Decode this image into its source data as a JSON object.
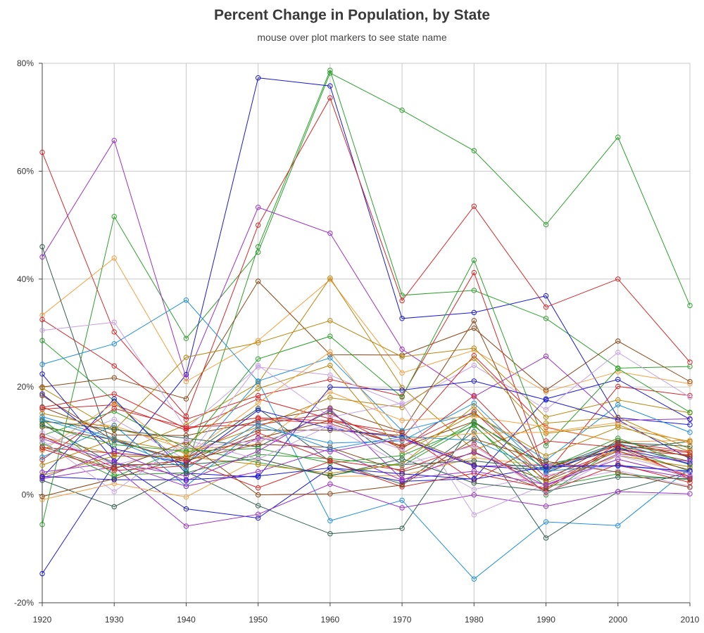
{
  "chart_data": {
    "type": "line",
    "title": "Percent Change in Population, by State",
    "subtitle": "mouse over plot markers to see state name",
    "xlabel": "",
    "ylabel": "",
    "x": [
      1920,
      1930,
      1940,
      1950,
      1960,
      1970,
      1980,
      1990,
      2000,
      2010
    ],
    "x_tick_labels": [
      "1920",
      "1930",
      "1940",
      "1950",
      "1960",
      "1970",
      "1980",
      "1990",
      "2000",
      "2010"
    ],
    "ylim": [
      -20,
      80
    ],
    "y_ticks": [
      -20,
      0,
      20,
      40,
      60,
      80
    ],
    "y_tick_labels": [
      "-20%",
      "0%",
      "20%",
      "40%",
      "60%",
      "80%"
    ],
    "grid": true,
    "legend": "none",
    "series": [
      {
        "color": "#2ca02c",
        "values": [
          -5.5,
          51.6,
          29.0,
          45.0,
          78.2,
          71.3,
          63.8,
          50.1,
          66.3,
          35.1
        ]
      },
      {
        "color": "#2ca02c",
        "values": [
          28.6,
          17.4,
          4.8,
          46.0,
          78.7,
          37.0,
          37.9,
          32.7,
          23.5,
          23.8
        ]
      },
      {
        "color": "#1a1ad2",
        "values": [
          -14.6,
          5.7,
          22.3,
          77.3,
          75.8,
          32.7,
          33.8,
          36.9,
          14.3,
          13.0
        ]
      },
      {
        "color": "#d62728",
        "values": [
          63.5,
          30.2,
          14.6,
          50.0,
          73.6,
          36.0,
          53.5,
          34.8,
          40.0,
          24.6
        ]
      },
      {
        "color": "#9b30c8",
        "values": [
          44.1,
          65.7,
          21.7,
          53.3,
          48.5,
          27.0,
          18.2,
          25.7,
          13.8,
          14.1
        ]
      },
      {
        "color": "#f5a042",
        "values": [
          33.3,
          43.9,
          21.0,
          28.6,
          39.9,
          22.6,
          26.8,
          19.1,
          22.8,
          20.6
        ]
      },
      {
        "color": "#1f8fdc",
        "values": [
          24.2,
          28.0,
          36.1,
          21.0,
          -4.8,
          -1.0,
          -15.6,
          -5.0,
          -5.7,
          5.0
        ]
      },
      {
        "color": "#8b4513",
        "values": [
          20.0,
          21.7,
          17.8,
          39.6,
          26.0,
          25.9,
          30.9,
          19.4,
          28.5,
          21.0
        ]
      },
      {
        "color": "#d62728",
        "values": [
          32.5,
          23.9,
          14.0,
          18.4,
          21.4,
          18.3,
          41.2,
          3.9,
          20.1,
          18.4
        ]
      },
      {
        "color": "#b8860b",
        "values": [
          19.8,
          12.0,
          25.5,
          28.2,
          32.3,
          25.6,
          27.2,
          14.4,
          17.6,
          15.2
        ]
      },
      {
        "color": "#2f5f4f",
        "values": [
          46.0,
          7.2,
          7.0,
          16.0,
          6.2,
          2.0,
          11.7,
          -8.0,
          0.6,
          4.3
        ]
      },
      {
        "color": "#b8860b",
        "values": [
          10.7,
          7.5,
          13.0,
          20.7,
          40.2,
          19.9,
          8.3,
          13.3,
          14.4,
          8.5
        ]
      },
      {
        "color": "#1a1ad2",
        "values": [
          22.4,
          6.3,
          -2.6,
          -4.3,
          5.0,
          2.5,
          3.0,
          17.8,
          21.4,
          14.0
        ]
      },
      {
        "color": "#8b4513",
        "values": [
          16.3,
          11.1,
          11.0,
          13.6,
          16.1,
          11.7,
          32.3,
          4.0,
          9.4,
          7.2
        ]
      },
      {
        "color": "#c8a2e8",
        "values": [
          30.5,
          32.0,
          12.3,
          23.7,
          22.2,
          16.7,
          24.0,
          15.8,
          26.4,
          18.1
        ]
      },
      {
        "color": "#2ca02c",
        "values": [
          11.0,
          15.5,
          8.6,
          25.2,
          29.4,
          18.1,
          43.5,
          9.1,
          23.4,
          15.3
        ]
      },
      {
        "color": "#d62728",
        "values": [
          15.9,
          16.7,
          12.0,
          17.8,
          14.1,
          10.5,
          25.8,
          12.5,
          9.8,
          8.0
        ]
      },
      {
        "color": "#1f8fdc",
        "values": [
          14.5,
          10.5,
          5.5,
          21.1,
          25.4,
          11.9,
          15.1,
          6.4,
          16.7,
          11.6
        ]
      },
      {
        "color": "#f5a042",
        "values": [
          13.5,
          12.8,
          8.4,
          9.4,
          19.1,
          13.8,
          14.5,
          12.6,
          9.8,
          10.1
        ]
      },
      {
        "color": "#1a1ad2",
        "values": [
          3.2,
          17.8,
          4.0,
          3.3,
          20.0,
          19.4,
          21.1,
          17.6,
          13.9,
          6.7
        ]
      },
      {
        "color": "#8b4513",
        "values": [
          12.6,
          10.2,
          6.1,
          12.0,
          12.0,
          11.0,
          5.6,
          0.9,
          9.1,
          6.2
        ]
      },
      {
        "color": "#2ca02c",
        "values": [
          14.0,
          3.7,
          4.1,
          7.5,
          6.7,
          5.4,
          13.0,
          0.0,
          8.9,
          4.4
        ]
      },
      {
        "color": "#d62728",
        "values": [
          8.8,
          7.7,
          6.8,
          14.1,
          13.2,
          9.1,
          15.4,
          3.2,
          8.3,
          7.4
        ]
      },
      {
        "color": "#9b30c8",
        "values": [
          3.0,
          5.2,
          -5.8,
          -3.6,
          2.0,
          -2.4,
          0.0,
          -2.1,
          0.6,
          0.2
        ]
      },
      {
        "color": "#b8860b",
        "values": [
          5.5,
          10.3,
          7.8,
          12.6,
          18.0,
          16.2,
          25.3,
          11.4,
          13.0,
          8.0
        ]
      },
      {
        "color": "#2f5f4f",
        "values": [
          2.7,
          -2.2,
          4.3,
          -2.0,
          -7.2,
          -6.2,
          13.4,
          5.6,
          8.4,
          9.9
        ]
      },
      {
        "color": "#d62728",
        "values": [
          6.5,
          16.0,
          12.6,
          13.0,
          15.1,
          8.5,
          18.4,
          4.8,
          9.2,
          7.8
        ]
      },
      {
        "color": "#c8a2e8",
        "values": [
          9.0,
          14.0,
          6.5,
          24.0,
          14.4,
          17.0,
          -3.7,
          2.0,
          4.5,
          1.6
        ]
      },
      {
        "color": "#f5a042",
        "values": [
          -0.9,
          2.1,
          -0.4,
          6.7,
          3.4,
          3.6,
          6.9,
          5.4,
          8.1,
          3.5
        ]
      },
      {
        "color": "#8b4513",
        "values": [
          -0.3,
          3.0,
          7.0,
          10.5,
          13.8,
          8.9,
          13.6,
          2.6,
          10.1,
          7.0
        ]
      },
      {
        "color": "#1f8fdc",
        "values": [
          7.0,
          12.9,
          1.6,
          12.6,
          9.6,
          10.0,
          17.0,
          4.2,
          9.6,
          5.6
        ]
      },
      {
        "color": "#9b30c8",
        "values": [
          4.2,
          6.0,
          3.5,
          10.6,
          8.0,
          10.4,
          5.3,
          5.5,
          5.4,
          3.1
        ]
      },
      {
        "color": "#2ca02c",
        "values": [
          9.6,
          3.3,
          8.8,
          6.0,
          3.6,
          5.9,
          13.6,
          4.8,
          10.5,
          5.6
        ]
      },
      {
        "color": "#d62728",
        "values": [
          16.2,
          18.7,
          12.3,
          14.3,
          13.7,
          11.5,
          2.6,
          10.0,
          8.8,
          3.3
        ]
      },
      {
        "color": "#1a1ad2",
        "values": [
          18.7,
          8.5,
          5.8,
          15.7,
          12.3,
          10.6,
          5.4,
          4.6,
          8.6,
          5.8
        ]
      },
      {
        "color": "#b8860b",
        "values": [
          15.1,
          12.3,
          9.3,
          19.7,
          24.0,
          7.7,
          15.0,
          7.2,
          12.5,
          9.9
        ]
      },
      {
        "color": "#2f5f4f",
        "values": [
          13.7,
          12.1,
          10.5,
          8.9,
          15.5,
          5.6,
          6.3,
          4.8,
          9.7,
          9.0
        ]
      },
      {
        "color": "#8b4513",
        "values": [
          18.4,
          10.0,
          6.4,
          9.4,
          8.8,
          4.3,
          7.8,
          2.6,
          8.1,
          4.6
        ]
      },
      {
        "color": "#c8a2e8",
        "values": [
          11.5,
          5.5,
          8.8,
          10.0,
          12.9,
          8.4,
          1.0,
          3.7,
          5.4,
          4.2
        ]
      },
      {
        "color": "#f5a042",
        "values": [
          8.2,
          17.0,
          7.3,
          17.0,
          26.5,
          10.2,
          11.4,
          11.6,
          13.4,
          9.6
        ]
      },
      {
        "color": "#9b30c8",
        "values": [
          10.4,
          6.1,
          1.6,
          4.3,
          8.5,
          2.7,
          8.0,
          1.7,
          7.6,
          6.2
        ]
      },
      {
        "color": "#2ca02c",
        "values": [
          12.9,
          9.3,
          8.1,
          8.6,
          5.9,
          7.3,
          12.8,
          1.5,
          3.9,
          2.8
        ]
      },
      {
        "color": "#1f8fdc",
        "values": [
          14.0,
          10.1,
          4.8,
          13.3,
          8.5,
          10.8,
          10.1,
          4.4,
          5.5,
          4.3
        ]
      },
      {
        "color": "#d62728",
        "values": [
          8.5,
          4.5,
          5.4,
          11.5,
          6.4,
          4.6,
          9.4,
          0.5,
          5.7,
          2.3
        ]
      },
      {
        "color": "#b8860b",
        "values": [
          3.6,
          7.2,
          7.1,
          5.6,
          4.0,
          5.7,
          16.4,
          2.2,
          7.3,
          5.2
        ]
      },
      {
        "color": "#2f5f4f",
        "values": [
          13.1,
          5.6,
          5.6,
          6.7,
          3.5,
          6.7,
          2.2,
          0.7,
          3.3,
          3.0
        ]
      },
      {
        "color": "#d62728",
        "values": [
          10.9,
          5.1,
          6.4,
          1.3,
          6.2,
          1.5,
          4.0,
          1.2,
          9.5,
          2.9
        ]
      },
      {
        "color": "#8b4513",
        "values": [
          8.9,
          4.8,
          9.8,
          0.0,
          0.2,
          1.8,
          10.4,
          6.2,
          4.2,
          1.4
        ]
      },
      {
        "color": "#9b30c8",
        "values": [
          3.1,
          8.1,
          2.6,
          8.1,
          15.9,
          2.9,
          4.4,
          1.9,
          6.6,
          3.4
        ]
      },
      {
        "color": "#1a1ad2",
        "values": [
          3.4,
          2.8,
          2.8,
          3.5,
          5.0,
          3.9,
          2.9,
          5.2,
          5.4,
          4.4
        ]
      },
      {
        "color": "#c8a2e8",
        "values": [
          10.1,
          0.6,
          10.2,
          6.6,
          12.9,
          5.6,
          9.1,
          0.3,
          7.3,
          3.9
        ]
      }
    ]
  }
}
